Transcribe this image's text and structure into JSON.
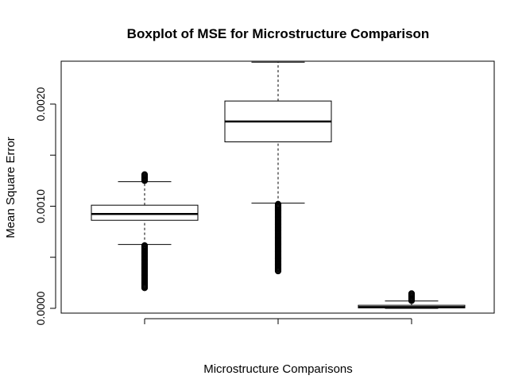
{
  "chart_data": {
    "type": "boxplot",
    "title": "Boxplot of MSE for Microstructure Comparison",
    "xlabel": "Microstructure Comparisons",
    "ylabel": "Mean Square Error",
    "ylim": [
      -4.69e-05,
      0.00242
    ],
    "yticks": [
      0.0,
      0.0005,
      0.001,
      0.0015,
      0.002
    ],
    "ytick_labels": [
      "0.0000",
      "",
      "0.0010",
      "",
      "0.0020"
    ],
    "categories": [
      "",
      "",
      ""
    ],
    "boxes": [
      {
        "whisker_low": 0.000625,
        "q1": 0.000862,
        "median": 0.000924,
        "q3": 0.00101,
        "whisker_high": 0.00124,
        "outliers_low_range": [
          0.0002,
          0.000615
        ],
        "outliers_high_range": [
          0.00125,
          0.00131
        ]
      },
      {
        "whisker_low": 0.00103,
        "q1": 0.00163,
        "median": 0.00183,
        "q3": 0.00203,
        "whisker_high": 0.00241,
        "outliers_low_range": [
          0.000365,
          0.00102
        ],
        "outliers_high_range": []
      },
      {
        "whisker_low": 0.0,
        "q1": 4e-06,
        "median": 1.2e-05,
        "q3": 3e-05,
        "whisker_high": 7.2e-05,
        "outliers_low_range": [],
        "outliers_high_range": [
          7.5e-05,
          0.000145
        ]
      }
    ]
  }
}
